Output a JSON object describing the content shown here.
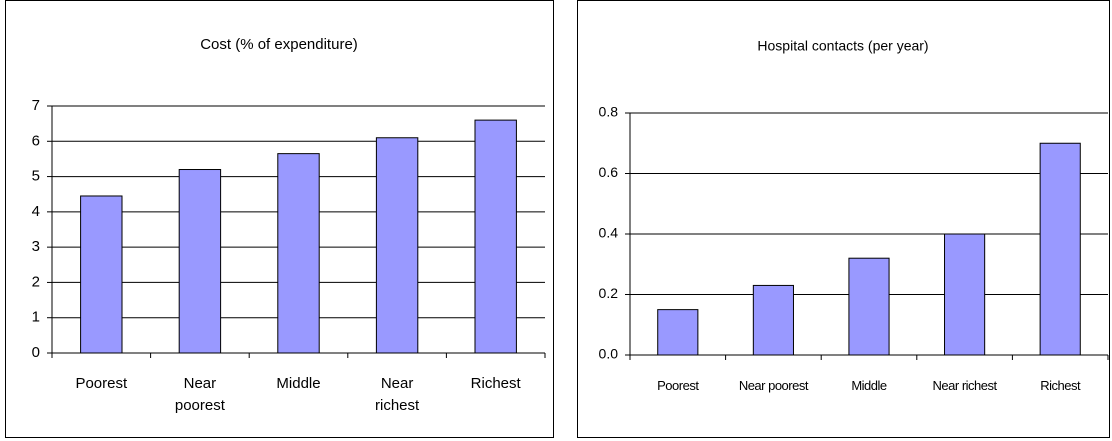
{
  "chart_data": [
    {
      "type": "bar",
      "title": "Cost (% of expenditure)",
      "categories": [
        "Poorest",
        "Near poorest",
        "Middle",
        "Near richest",
        "Richest"
      ],
      "values": [
        4.45,
        5.2,
        5.65,
        6.1,
        6.6
      ],
      "color": "#9999ff",
      "ylim": [
        0,
        7
      ],
      "yticks": [
        0,
        1,
        2,
        3,
        4,
        5,
        6,
        7
      ],
      "grid": true
    },
    {
      "type": "bar",
      "title": "Hospital contacts (per year)",
      "categories": [
        "Poorest",
        "Near poorest",
        "Middle",
        "Near richest",
        "Richest"
      ],
      "values": [
        0.15,
        0.23,
        0.32,
        0.4,
        0.7
      ],
      "color": "#9999ff",
      "ylim": [
        0,
        0.8
      ],
      "yticks": [
        {
          "value": 0,
          "label": "0.0"
        },
        0.2,
        0.4,
        0.6,
        0.8
      ],
      "grid": true
    }
  ]
}
